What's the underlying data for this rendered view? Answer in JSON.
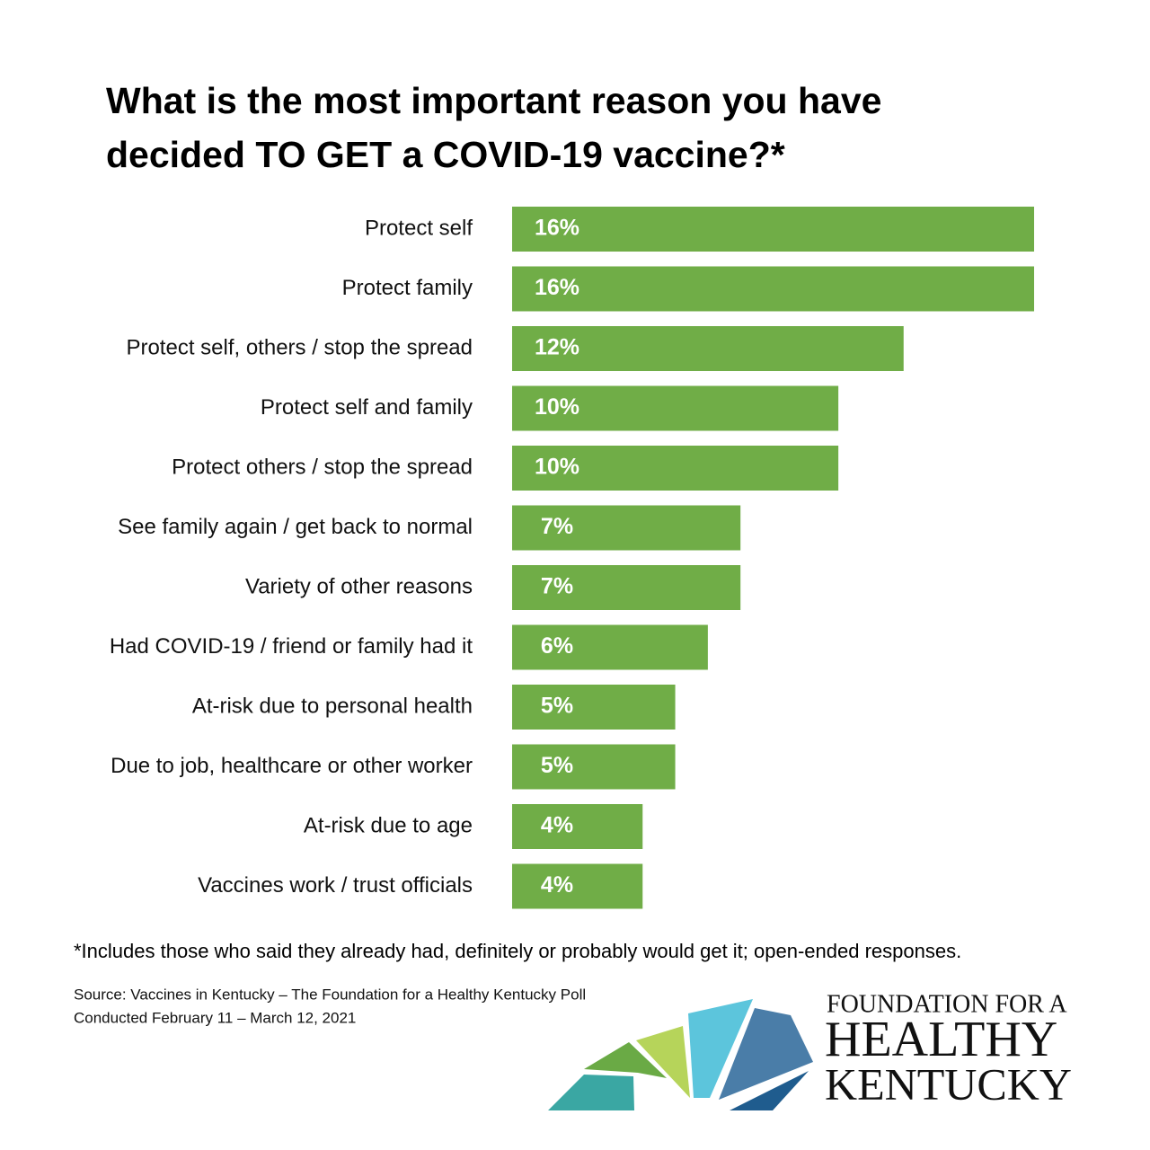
{
  "chart_data": {
    "type": "hbar",
    "title": "What is the most important reason you have decided TO GET a COVID-19 vaccine?*",
    "categories": [
      "Protect self",
      "Protect family",
      "Protect self, others / stop the spread",
      "Protect self and family",
      "Protect others / stop the spread",
      "See family again / get back to normal",
      "Variety of other reasons",
      "Had COVID-19 / friend or family had it",
      "At-risk due to personal health",
      "Due to job, healthcare or other worker",
      "At-risk due to age",
      "Vaccines work / trust officials"
    ],
    "values": [
      16,
      16,
      12,
      10,
      10,
      7,
      7,
      6,
      5,
      5,
      4,
      4
    ],
    "value_labels": [
      "16%",
      "16%",
      "12%",
      "10%",
      "10%",
      "7%",
      "7%",
      "6%",
      "5%",
      "5%",
      "4%",
      "4%"
    ],
    "color": "#70ad47",
    "note": "*Includes those who said they already had, definitely or probably would get it; open-ended responses.",
    "source": [
      "Source: Vaccines in Kentucky – The Foundation for a Healthy Kentucky Poll",
      "Conducted February 11 – March 12, 2021"
    ]
  },
  "logo": [
    "FOUNDATION FOR A",
    "HEALTHY",
    "KENTUCKY"
  ]
}
